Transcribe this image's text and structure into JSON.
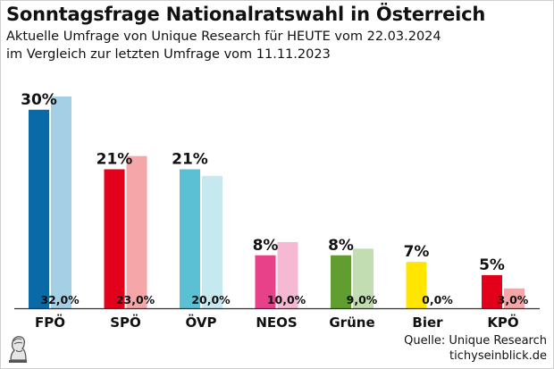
{
  "header": {
    "title": "Sonntagsfrage Nationalratswahl in Österreich",
    "subtitle_line1": "Aktuelle Umfrage von Unique Research für HEUTE vom 22.03.2024",
    "subtitle_line2": "im Vergleich zur letzten Umfrage vom 11.11.2023"
  },
  "footer": {
    "source": "Quelle: Unique Research",
    "site": "tichyseinblick.de",
    "logo_icon": "bust-portrait-icon"
  },
  "chart_data": {
    "type": "bar",
    "categories": [
      "FPÖ",
      "SPÖ",
      "ÖVP",
      "NEOS",
      "Grüne",
      "Bier",
      "KPÖ"
    ],
    "series": [
      {
        "values": [
          30,
          21,
          21,
          8,
          8,
          7,
          5
        ],
        "labels": [
          "30%",
          "21%",
          "21%",
          "8%",
          "8%",
          "7%",
          "5%"
        ],
        "colors": [
          "#0a6aa8",
          "#e3001b",
          "#5bc0d4",
          "#e8418a",
          "#5f9e2f",
          "#ffe500",
          "#e3001b"
        ]
      },
      {
        "values": [
          32.0,
          23.0,
          20.0,
          10.0,
          9.0,
          0.0,
          3.0
        ],
        "labels": [
          "32,0%",
          "23,0%",
          "20,0%",
          "10,0%",
          "9,0%",
          "0,0%",
          "3,0%"
        ],
        "colors": [
          "#a5cfe4",
          "#f4a6a9",
          "#c6e8ef",
          "#f6b9d4",
          "#c2ddb2",
          "#fff6a8",
          "#f4a6a9"
        ]
      }
    ],
    "ylim": [
      0,
      32
    ],
    "grid": false,
    "legend": "none"
  }
}
